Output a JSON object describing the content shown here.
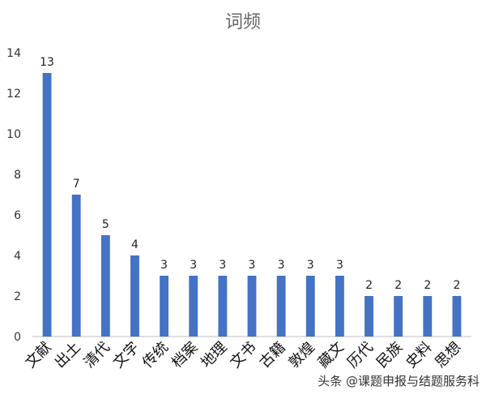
{
  "chart_data": {
    "type": "bar",
    "title": "词频",
    "categories": [
      "文献",
      "出土",
      "清代",
      "文字",
      "传统",
      "档案",
      "地理",
      "文书",
      "古籍",
      "敦煌",
      "藏文",
      "历代",
      "民族",
      "史料",
      "思想"
    ],
    "values": [
      13,
      7,
      5,
      4,
      3,
      3,
      3,
      3,
      3,
      3,
      3,
      2,
      2,
      2,
      2
    ],
    "y_ticks": [
      0,
      2,
      4,
      6,
      8,
      10,
      12,
      14
    ],
    "ylim": [
      0,
      14
    ],
    "xlabel": "",
    "ylabel": "",
    "grid": false,
    "bar_color": "#4472C4"
  },
  "watermark": "头条 @课题申报与结题服务科"
}
